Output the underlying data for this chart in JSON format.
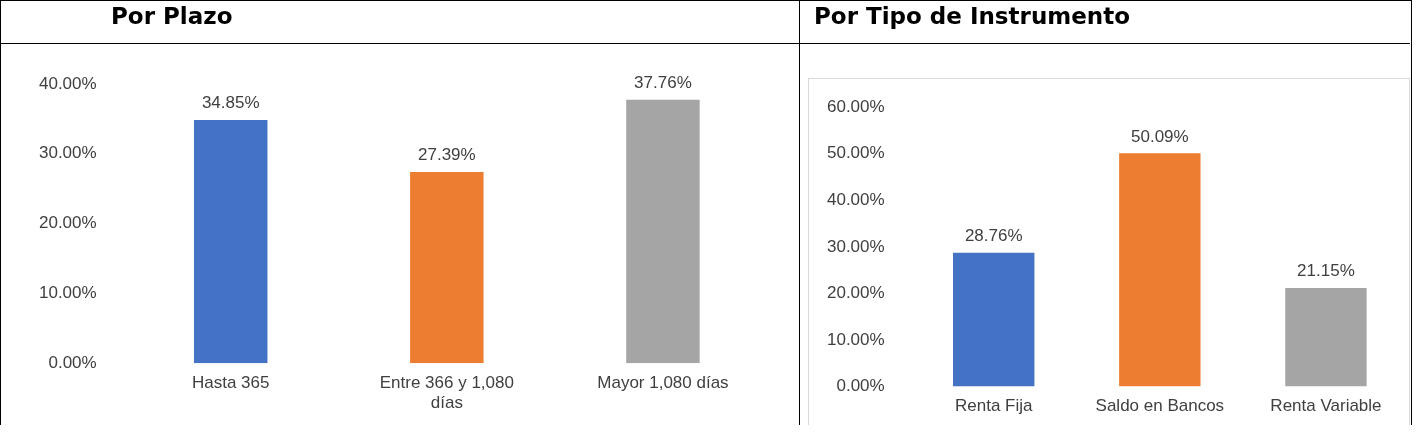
{
  "chart_data": [
    {
      "type": "bar",
      "title": "Por Plazo",
      "categories": [
        "Hasta 365",
        "Entre 366 y 1,080 días",
        "Mayor 1,080 días"
      ],
      "values": [
        34.85,
        27.39,
        37.76
      ],
      "colors": [
        "#4472c4",
        "#ed7d31",
        "#a5a5a5"
      ],
      "value_labels": [
        "34.85%",
        "27.39%",
        "37.76%"
      ],
      "ylim": [
        0,
        40
      ],
      "yticks": [
        {
          "value": 0,
          "label": "0.00%"
        },
        {
          "value": 10,
          "label": "10.00%"
        },
        {
          "value": 20,
          "label": "20.00%"
        },
        {
          "value": 30,
          "label": "30.00%"
        },
        {
          "value": 40,
          "label": "40.00%"
        }
      ]
    },
    {
      "type": "bar",
      "title": "Por Tipo de Instrumento",
      "categories": [
        "Renta Fija",
        "Saldo en Bancos",
        "Renta Variable"
      ],
      "values": [
        28.76,
        50.09,
        21.15
      ],
      "colors": [
        "#4472c4",
        "#ed7d31",
        "#a5a5a5"
      ],
      "value_labels": [
        "28.76%",
        "50.09%",
        "21.15%"
      ],
      "ylim": [
        0,
        60
      ],
      "yticks": [
        {
          "value": 0,
          "label": "0.00%"
        },
        {
          "value": 10,
          "label": "10.00%"
        },
        {
          "value": 20,
          "label": "20.00%"
        },
        {
          "value": 30,
          "label": "30.00%"
        },
        {
          "value": 40,
          "label": "40.00%"
        },
        {
          "value": 50,
          "label": "50.00%"
        },
        {
          "value": 60,
          "label": "60.00%"
        }
      ]
    }
  ]
}
